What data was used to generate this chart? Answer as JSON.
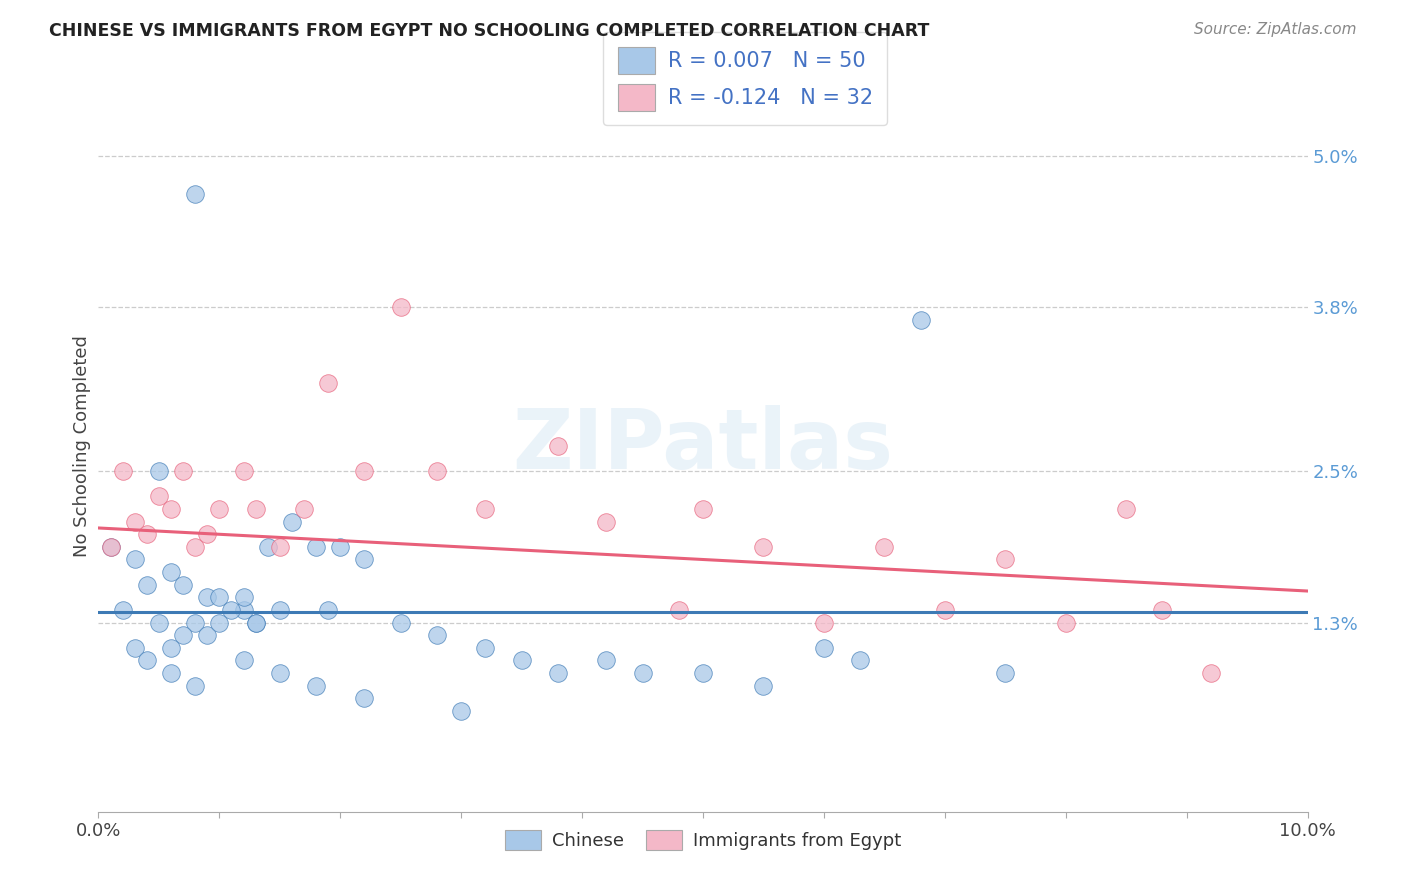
{
  "title": "CHINESE VS IMMIGRANTS FROM EGYPT NO SCHOOLING COMPLETED CORRELATION CHART",
  "source": "Source: ZipAtlas.com",
  "ylabel": "No Schooling Completed",
  "ytick_labels": [
    "1.3%",
    "2.5%",
    "3.8%",
    "5.0%"
  ],
  "ytick_values": [
    0.013,
    0.025,
    0.038,
    0.05
  ],
  "xlim": [
    0.0,
    0.1
  ],
  "ylim": [
    -0.002,
    0.056
  ],
  "legend_label1": "Chinese",
  "legend_label2": "Immigrants from Egypt",
  "color_blue": "#a8c8e8",
  "color_pink": "#f4b8c8",
  "color_blue_line": "#3d7ab5",
  "color_pink_line": "#e8607a",
  "R1": 0.007,
  "N1": 50,
  "R2": -0.124,
  "N2": 32,
  "legend_color": "#4472c4",
  "chinese_x": [
    0.008,
    0.005,
    0.001,
    0.003,
    0.006,
    0.004,
    0.007,
    0.009,
    0.002,
    0.01,
    0.012,
    0.008,
    0.011,
    0.013,
    0.007,
    0.005,
    0.009,
    0.006,
    0.014,
    0.016,
    0.015,
    0.012,
    0.018,
    0.013,
    0.02,
    0.022,
    0.019,
    0.025,
    0.028,
    0.032,
    0.035,
    0.038,
    0.042,
    0.045,
    0.05,
    0.055,
    0.06,
    0.063,
    0.068,
    0.075,
    0.003,
    0.004,
    0.006,
    0.008,
    0.01,
    0.012,
    0.015,
    0.018,
    0.022,
    0.03
  ],
  "chinese_y": [
    0.047,
    0.025,
    0.019,
    0.018,
    0.017,
    0.016,
    0.016,
    0.015,
    0.014,
    0.015,
    0.014,
    0.013,
    0.014,
    0.013,
    0.012,
    0.013,
    0.012,
    0.011,
    0.019,
    0.021,
    0.014,
    0.015,
    0.019,
    0.013,
    0.019,
    0.018,
    0.014,
    0.013,
    0.012,
    0.011,
    0.01,
    0.009,
    0.01,
    0.009,
    0.009,
    0.008,
    0.011,
    0.01,
    0.037,
    0.009,
    0.011,
    0.01,
    0.009,
    0.008,
    0.013,
    0.01,
    0.009,
    0.008,
    0.007,
    0.006
  ],
  "egypt_x": [
    0.001,
    0.002,
    0.003,
    0.004,
    0.005,
    0.006,
    0.007,
    0.008,
    0.009,
    0.01,
    0.012,
    0.013,
    0.015,
    0.017,
    0.019,
    0.022,
    0.025,
    0.028,
    0.032,
    0.038,
    0.042,
    0.048,
    0.05,
    0.055,
    0.06,
    0.065,
    0.07,
    0.075,
    0.08,
    0.085,
    0.088,
    0.092
  ],
  "egypt_y": [
    0.019,
    0.025,
    0.021,
    0.02,
    0.023,
    0.022,
    0.025,
    0.019,
    0.02,
    0.022,
    0.025,
    0.022,
    0.019,
    0.022,
    0.032,
    0.025,
    0.038,
    0.025,
    0.022,
    0.027,
    0.021,
    0.014,
    0.022,
    0.019,
    0.013,
    0.019,
    0.014,
    0.018,
    0.013,
    0.022,
    0.014,
    0.009
  ],
  "blue_trend_y0": 0.0138,
  "blue_trend_y1": 0.0138,
  "pink_trend_y0": 0.0205,
  "pink_trend_y1": 0.0155
}
